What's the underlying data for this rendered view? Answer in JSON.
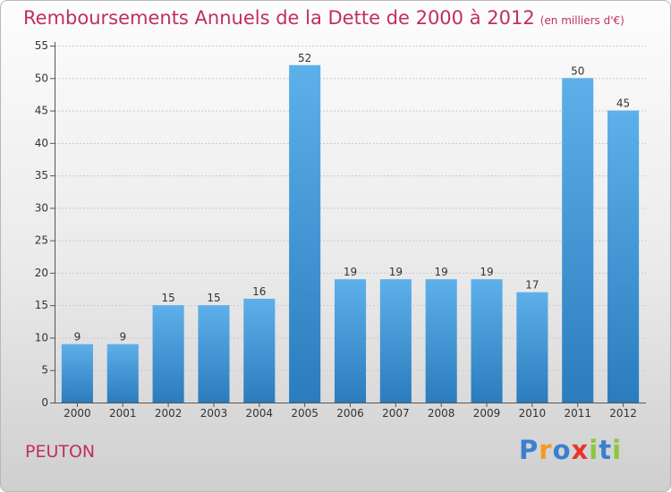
{
  "header": {
    "title": "Remboursements Annuels de la Dette de 2000 à 2012",
    "unit": "(en milliers d'€)"
  },
  "footer": {
    "commune": "PEUTON",
    "logo_letters": [
      "P",
      "r",
      "o",
      "x",
      "i",
      "t",
      "i"
    ]
  },
  "colors": {
    "title": "#c0305a",
    "bar_light": "#5eb0ea",
    "bar_dark": "#2a7cbd",
    "logo": [
      "#3a7fd0",
      "#f39b21",
      "#3a7fd0",
      "#e8352a",
      "#8cc63f",
      "#3a7fd0",
      "#8cc63f"
    ]
  },
  "chart_data": {
    "type": "bar",
    "title": "Remboursements Annuels de la Dette de 2000 à 2012",
    "subtitle": "(en milliers d'€)",
    "xlabel": "",
    "ylabel": "",
    "categories": [
      "2000",
      "2001",
      "2002",
      "2003",
      "2004",
      "2005",
      "2006",
      "2007",
      "2008",
      "2009",
      "2010",
      "2011",
      "2012"
    ],
    "values": [
      9,
      9,
      15,
      15,
      16,
      52,
      19,
      19,
      19,
      19,
      17,
      50,
      45
    ],
    "ylim": [
      0,
      55
    ],
    "yticks": [
      0,
      5,
      10,
      15,
      20,
      25,
      30,
      35,
      40,
      45,
      50,
      55
    ],
    "grid": true,
    "legend": "none"
  }
}
